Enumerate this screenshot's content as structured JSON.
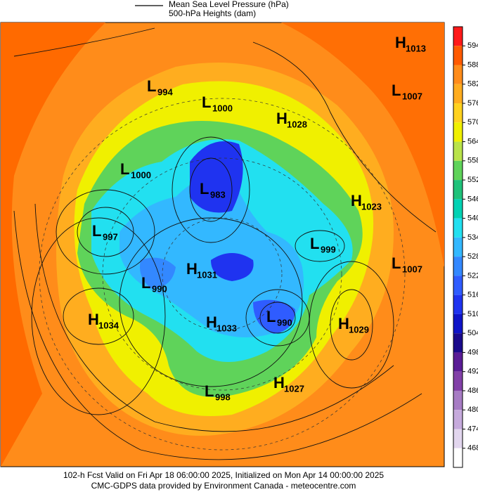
{
  "legend": {
    "lines": [
      "Mean Sea Level Pressure (hPa)",
      "500-hPa Heights (dam)"
    ]
  },
  "colorbar": {
    "ticks": [
      594,
      588,
      582,
      576,
      570,
      564,
      558,
      552,
      546,
      540,
      534,
      528,
      522,
      516,
      510,
      504,
      498,
      492,
      486,
      480,
      474,
      468
    ],
    "colors": [
      "#ff1a1a",
      "#ff5a00",
      "#ff8c1a",
      "#ffad1f",
      "#ffd21f",
      "#f0f000",
      "#b9e34a",
      "#5fd35a",
      "#1fc27a",
      "#00d2b4",
      "#22e0f0",
      "#33b8ff",
      "#3388ff",
      "#2f5cff",
      "#1f33f0",
      "#0f14c8",
      "#1a0a8c",
      "#5a1c96",
      "#8240a8",
      "#a77cc4",
      "#c6aadc",
      "#e2d6ee",
      "#ffffff"
    ]
  },
  "centers": [
    {
      "type": "H",
      "value": 1013
    },
    {
      "type": "L",
      "value": 1007
    },
    {
      "type": "L",
      "value": 994
    },
    {
      "type": "L",
      "value": 1000
    },
    {
      "type": "H",
      "value": 1028
    },
    {
      "type": "L",
      "value": 1000
    },
    {
      "type": "L",
      "value": 983
    },
    {
      "type": "H",
      "value": 1023
    },
    {
      "type": "L",
      "value": 997
    },
    {
      "type": "L",
      "value": 999
    },
    {
      "type": "L",
      "value": 1007
    },
    {
      "type": "H",
      "value": 1031
    },
    {
      "type": "L",
      "value": 990
    },
    {
      "type": "H",
      "value": 1034
    },
    {
      "type": "H",
      "value": 1033
    },
    {
      "type": "L",
      "value": 990
    },
    {
      "type": "H",
      "value": 1029
    },
    {
      "type": "L",
      "value": 998
    },
    {
      "type": "H",
      "value": 1027
    }
  ],
  "footer": [
    "102-h Fcst Valid on Fri Apr 18 06:00:00 2025, Initialized on Mon Apr 14 00:00:00 2025",
    "CMC-GDPS data provided by Environment Canada - meteocentre.com"
  ]
}
